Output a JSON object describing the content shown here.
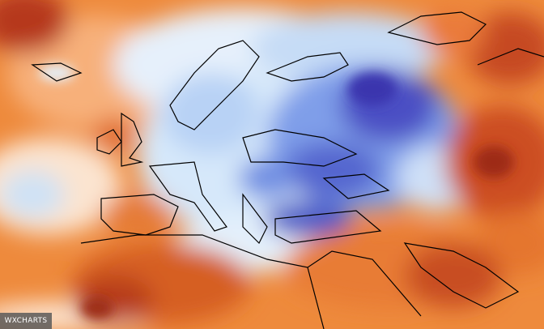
{
  "watermark": "WXCHARTS"
}
